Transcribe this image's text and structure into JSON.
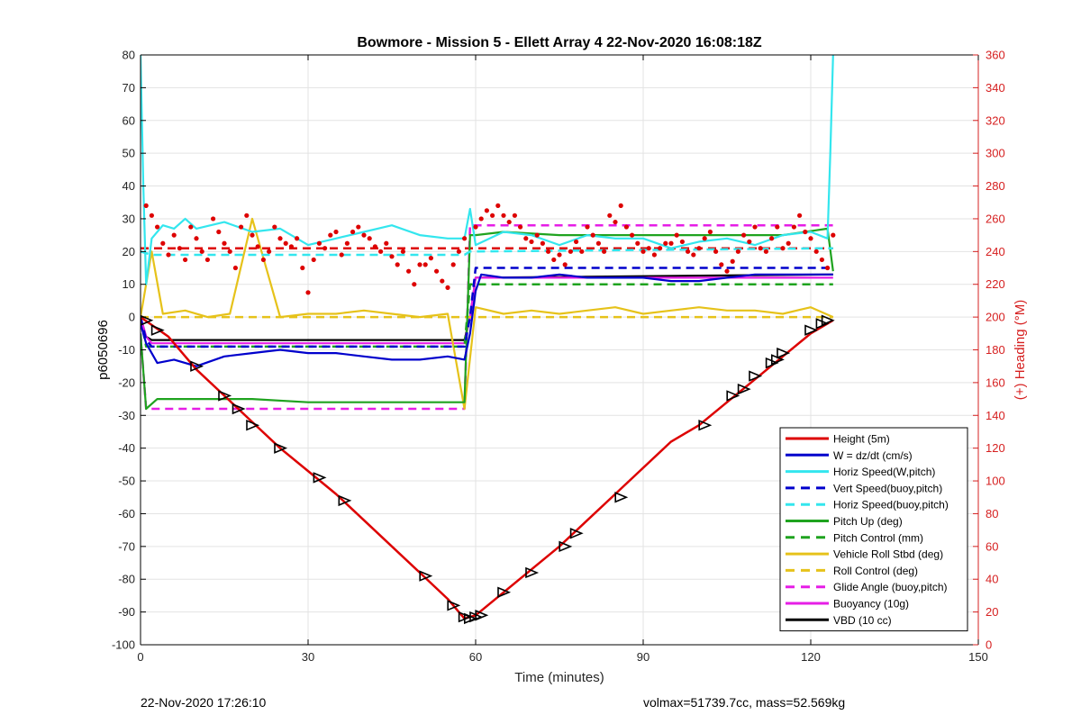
{
  "chart_data": {
    "type": "line",
    "title": "Bowmore - Mission 5 - Ellett Array 4 22-Nov-2020 16:08:18Z",
    "xlabel": "Time (minutes)",
    "ylabel": "p6050696",
    "y2label": "(+) Heading (°M)",
    "xlim": [
      0,
      150
    ],
    "ylim": [
      -100,
      80
    ],
    "y2lim": [
      0,
      360
    ],
    "xticks": [
      0,
      30,
      60,
      90,
      120,
      150
    ],
    "yticks": [
      -100,
      -90,
      -80,
      -70,
      -60,
      -50,
      -40,
      -30,
      -20,
      -10,
      0,
      10,
      20,
      30,
      40,
      50,
      60,
      70,
      80
    ],
    "y2ticks": [
      0,
      20,
      40,
      60,
      80,
      100,
      120,
      140,
      160,
      180,
      200,
      220,
      240,
      260,
      280,
      300,
      320,
      340,
      360
    ],
    "grid": true,
    "legend_position": "bottom-right",
    "colors": {
      "red": "#dd0000",
      "blue": "#0000cc",
      "cyan": "#33e6ee",
      "green": "#1fa31f",
      "yellow": "#e6c21a",
      "magenta": "#e61ee6",
      "black": "#000000",
      "heading_axis": "#d62020"
    },
    "series": [
      {
        "name": "Height (5m)",
        "color": "#dd0000",
        "style": "solid",
        "x": [
          0,
          5,
          10,
          15,
          20,
          25,
          30,
          35,
          40,
          45,
          50,
          55,
          58,
          60,
          65,
          70,
          75,
          80,
          85,
          90,
          95,
          100,
          105,
          110,
          115,
          120,
          124
        ],
        "y": [
          0,
          -6,
          -16,
          -24,
          -32,
          -40,
          -47,
          -54,
          -62,
          -70,
          -78,
          -86,
          -92,
          -91,
          -84,
          -77,
          -70,
          -62,
          -54,
          -46,
          -38,
          -33,
          -26,
          -19,
          -12,
          -5,
          -1
        ]
      },
      {
        "name": "W = dz/dt (cm/s)",
        "color": "#0000cc",
        "style": "solid",
        "x": [
          0,
          1,
          3,
          6,
          10,
          15,
          20,
          25,
          30,
          35,
          40,
          45,
          50,
          55,
          58,
          59,
          60,
          61,
          65,
          70,
          75,
          80,
          85,
          90,
          95,
          100,
          105,
          110,
          115,
          120,
          124
        ],
        "y": [
          -2,
          -8,
          -14,
          -13,
          -15,
          -12,
          -11,
          -10,
          -11,
          -11,
          -12,
          -13,
          -13,
          -12,
          -13,
          -5,
          8,
          13,
          12,
          12,
          13,
          12,
          12,
          12,
          11,
          11,
          12,
          13,
          13,
          13,
          13
        ]
      },
      {
        "name": "Horiz Speed(W,pitch)",
        "color": "#33e6ee",
        "style": "solid",
        "x": [
          0,
          0.5,
          1,
          2,
          4,
          6,
          8,
          10,
          15,
          20,
          25,
          30,
          35,
          40,
          45,
          50,
          55,
          58,
          59,
          60,
          65,
          70,
          75,
          80,
          85,
          90,
          95,
          100,
          105,
          110,
          115,
          120,
          123,
          123.5,
          124
        ],
        "y": [
          80,
          40,
          10,
          24,
          28,
          27,
          30,
          27,
          29,
          26,
          27,
          22,
          24,
          26,
          28,
          25,
          24,
          24,
          33,
          22,
          26,
          25,
          22,
          25,
          24,
          24,
          21,
          23,
          24,
          22,
          25,
          26,
          24,
          50,
          80
        ]
      },
      {
        "name": "Vert Speed(buoy,pitch)",
        "color": "#0000cc",
        "style": "dashed",
        "x": [
          0,
          1,
          2,
          58,
          59,
          60,
          124
        ],
        "y": [
          0,
          -7,
          -9,
          -9,
          0,
          15,
          15
        ]
      },
      {
        "name": "Horiz Speed(buoy,pitch)",
        "color": "#33e6ee",
        "style": "dashed",
        "x": [
          0,
          2,
          58,
          59,
          124
        ],
        "y": [
          20,
          19,
          19,
          20,
          21
        ]
      },
      {
        "name": "Pitch Up (deg)",
        "color": "#1fa31f",
        "style": "solid",
        "x": [
          0,
          1,
          3,
          10,
          20,
          30,
          40,
          50,
          58,
          59,
          60,
          65,
          75,
          85,
          95,
          105,
          115,
          123,
          124
        ],
        "y": [
          -5,
          -28,
          -25,
          -25,
          -25,
          -26,
          -26,
          -26,
          -26,
          25,
          25,
          26,
          25,
          25,
          25,
          25,
          25,
          27,
          14
        ]
      },
      {
        "name": "Pitch Control (mm)",
        "color": "#1fa31f",
        "style": "dashed",
        "x": [
          0,
          1,
          3,
          58,
          59,
          62,
          124
        ],
        "y": [
          0,
          -9,
          -9,
          -9,
          10,
          10,
          10
        ]
      },
      {
        "name": "Vehicle Roll Stbd (deg)",
        "color": "#e6c21a",
        "style": "solid",
        "x": [
          0,
          2,
          4,
          8,
          12,
          16,
          20,
          25,
          30,
          35,
          40,
          45,
          50,
          55,
          58,
          60,
          65,
          70,
          75,
          80,
          85,
          90,
          95,
          100,
          105,
          110,
          115,
          120,
          124
        ],
        "y": [
          0,
          20,
          1,
          2,
          0,
          1,
          30,
          0,
          1,
          1,
          2,
          1,
          0,
          1,
          -28,
          3,
          1,
          2,
          1,
          2,
          3,
          1,
          2,
          3,
          2,
          2,
          1,
          3,
          0
        ]
      },
      {
        "name": "Roll Control (deg)",
        "color": "#e6c21a",
        "style": "dashed",
        "x": [
          0,
          58,
          60,
          124
        ],
        "y": [
          0,
          0,
          0,
          0
        ]
      },
      {
        "name": "Glide Angle (buoy,pitch)",
        "color": "#e61ee6",
        "style": "dashed",
        "x": [
          0,
          1,
          3,
          58,
          59,
          62,
          124
        ],
        "y": [
          -5,
          -28,
          -28,
          -28,
          28,
          28,
          28
        ]
      },
      {
        "name": "Buoyancy (10g)",
        "color": "#e61ee6",
        "style": "solid",
        "x": [
          0,
          1,
          2,
          58,
          59,
          60,
          124
        ],
        "y": [
          0,
          -6,
          -8,
          -8,
          0,
          12,
          12
        ]
      },
      {
        "name": "VBD (10 cc)",
        "color": "#000000",
        "style": "solid",
        "x": [
          0,
          1,
          2,
          58,
          59,
          60,
          124
        ],
        "y": [
          0,
          -6,
          -7,
          -7,
          0,
          12,
          13
        ]
      }
    ],
    "heading_series": {
      "axis": "right",
      "color": "#dd0000",
      "marker": "dot",
      "x": [
        1,
        2,
        3,
        4,
        5,
        6,
        7,
        8,
        9,
        10,
        11,
        12,
        13,
        14,
        15,
        16,
        17,
        18,
        19,
        20,
        21,
        22,
        23,
        24,
        25,
        26,
        27,
        28,
        29,
        30,
        31,
        32,
        33,
        34,
        35,
        36,
        37,
        38,
        39,
        40,
        41,
        42,
        43,
        44,
        45,
        46,
        47,
        48,
        49,
        50,
        51,
        52,
        53,
        54,
        55,
        56,
        57,
        58,
        60,
        61,
        62,
        63,
        64,
        65,
        66,
        67,
        68,
        69,
        70,
        71,
        72,
        73,
        74,
        75,
        76,
        77,
        78,
        79,
        80,
        81,
        82,
        83,
        84,
        85,
        86,
        87,
        88,
        89,
        90,
        91,
        92,
        93,
        94,
        95,
        96,
        97,
        98,
        99,
        100,
        101,
        102,
        103,
        104,
        105,
        106,
        107,
        108,
        109,
        110,
        111,
        112,
        113,
        114,
        115,
        116,
        117,
        118,
        119,
        120,
        121,
        122,
        123,
        124
      ],
      "y": [
        268,
        262,
        255,
        245,
        238,
        250,
        242,
        235,
        255,
        248,
        240,
        235,
        260,
        252,
        245,
        240,
        230,
        255,
        262,
        250,
        243,
        235,
        240,
        255,
        248,
        245,
        243,
        248,
        230,
        215,
        235,
        245,
        242,
        250,
        252,
        238,
        245,
        252,
        255,
        250,
        248,
        243,
        240,
        245,
        237,
        232,
        240,
        228,
        220,
        232,
        232,
        236,
        228,
        222,
        218,
        232,
        240,
        248,
        255,
        260,
        265,
        262,
        268,
        262,
        258,
        262,
        255,
        248,
        246,
        250,
        245,
        240,
        235,
        238,
        232,
        240,
        246,
        240,
        255,
        250,
        245,
        240,
        262,
        258,
        268,
        255,
        250,
        245,
        240,
        242,
        238,
        242,
        245,
        245,
        250,
        246,
        240,
        238,
        242,
        248,
        252,
        240,
        232,
        228,
        234,
        240,
        250,
        246,
        255,
        242,
        240,
        248,
        255,
        242,
        245,
        255,
        262,
        252,
        248,
        240,
        235,
        230,
        250
      ]
    },
    "heading_mean": {
      "axis": "right",
      "color": "#dd0000",
      "style": "dashed",
      "x": [
        0,
        124
      ],
      "y": [
        242,
        242
      ]
    },
    "depth_markers": {
      "marker": "triangle",
      "x": [
        1,
        3,
        10,
        15,
        17.5,
        20,
        25,
        32,
        36.5,
        51,
        56,
        58,
        59,
        60,
        61,
        65,
        70,
        76,
        78,
        86,
        101,
        106,
        108,
        110,
        113,
        114,
        115,
        120,
        122,
        123
      ],
      "y": [
        -1,
        -4,
        -15,
        -24,
        -28,
        -33,
        -40,
        -49,
        -56,
        -79,
        -88,
        -91.5,
        -92,
        -91.5,
        -91,
        -84,
        -78,
        -70,
        -66,
        -55,
        -33,
        -24,
        -22,
        -18,
        -14,
        -13,
        -11,
        -4,
        -2,
        -1
      ]
    }
  },
  "footer": {
    "left": "22-Nov-2020 17:26:10",
    "right": "volmax=51739.7cc, mass=52.569kg"
  }
}
